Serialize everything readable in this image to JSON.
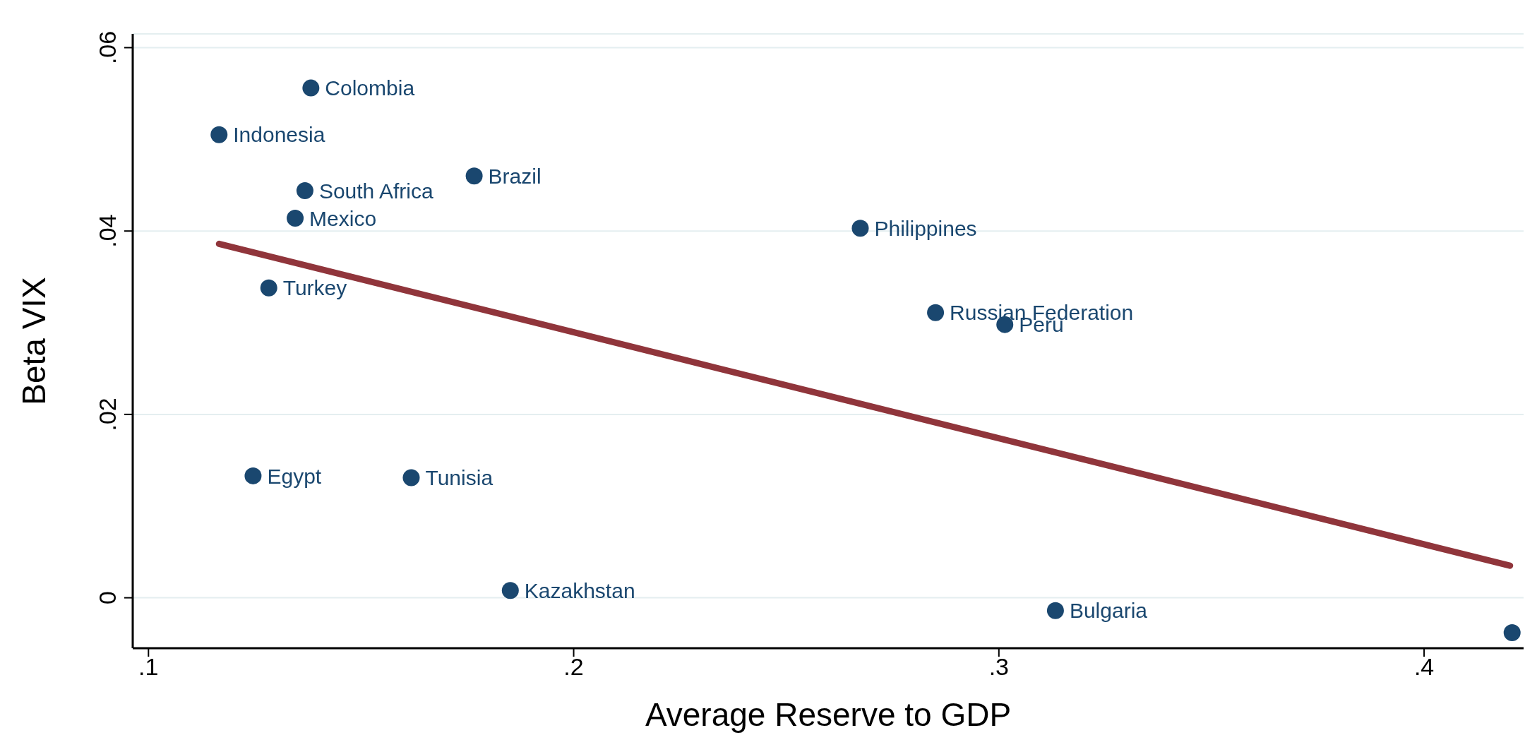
{
  "chart_data": {
    "type": "scatter",
    "xlabel": "Average Reserve to GDP",
    "ylabel": "Beta VIX",
    "xlim": [
      0.0963,
      0.4234
    ],
    "ylim": [
      -0.0055,
      0.0615
    ],
    "xticks": [
      {
        "value": 0.1,
        "label": ".1"
      },
      {
        "value": 0.2,
        "label": ".2"
      },
      {
        "value": 0.3,
        "label": ".3"
      },
      {
        "value": 0.4,
        "label": ".4"
      }
    ],
    "yticks": [
      0,
      {
        "value": 0.02,
        "label": ".02"
      },
      {
        "value": 0.04,
        "label": ".04"
      },
      {
        "value": 0.06,
        "label": ".06"
      }
    ],
    "grid": "y",
    "marker": "circle",
    "series": [
      {
        "color": "#1a476f",
        "x": [
          0.1382,
          0.1166,
          0.1766,
          0.1368,
          0.1345,
          0.2674,
          0.1283,
          0.2851,
          0.3014,
          0.1246,
          0.1618,
          0.1851,
          0.3133,
          0.4207
        ],
        "values": [
          0.0556,
          0.0505,
          0.046,
          0.0444,
          0.0414,
          0.0403,
          0.0338,
          0.0311,
          0.0298,
          0.0133,
          0.0131,
          0.0008,
          -0.0014,
          -0.0038
        ]
      },
      {
        "type": "line",
        "color": "#90353b",
        "line_style": "solid",
        "marker": "none",
        "x": [
          0.1166,
          0.4202
        ],
        "values": [
          0.0386,
          0.0035
        ]
      }
    ],
    "annotations": [
      {
        "text": "Colombia",
        "x": 0.1382,
        "y": 0.0556
      },
      {
        "text": "Indonesia",
        "x": 0.1166,
        "y": 0.0505
      },
      {
        "text": "Brazil",
        "x": 0.1766,
        "y": 0.046
      },
      {
        "text": "South Africa",
        "x": 0.1368,
        "y": 0.0444
      },
      {
        "text": "Mexico",
        "x": 0.1345,
        "y": 0.0414
      },
      {
        "text": "Philippines",
        "x": 0.2674,
        "y": 0.0403
      },
      {
        "text": "Turkey",
        "x": 0.1283,
        "y": 0.0338
      },
      {
        "text": "Russian Federation",
        "x": 0.2851,
        "y": 0.0311
      },
      {
        "text": "Peru",
        "x": 0.3014,
        "y": 0.0298
      },
      {
        "text": "Egypt",
        "x": 0.1246,
        "y": 0.0133
      },
      {
        "text": "Tunisia",
        "x": 0.1618,
        "y": 0.0131
      },
      {
        "text": "Kazakhstan",
        "x": 0.1851,
        "y": 0.0008
      },
      {
        "text": "Bulgaria",
        "x": 0.3133,
        "y": -0.0014
      }
    ]
  }
}
